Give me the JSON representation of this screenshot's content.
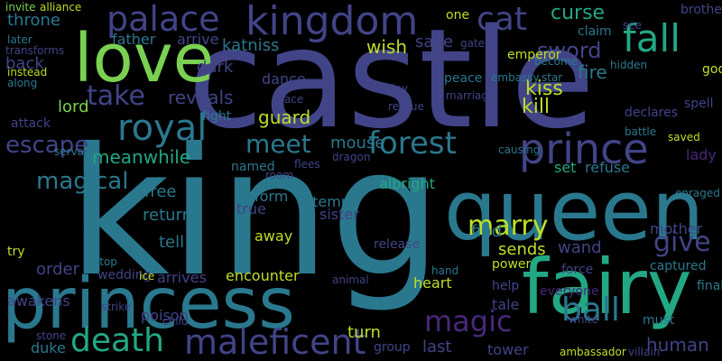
{
  "words": [
    {
      "text": "king",
      "color": "#2a788e"
    },
    {
      "text": "castle",
      "color": "#414487"
    },
    {
      "text": "queen",
      "color": "#2a788e"
    },
    {
      "text": "princess",
      "color": "#2a788e"
    },
    {
      "text": "fairy",
      "color": "#22a884"
    },
    {
      "text": "love",
      "color": "#7ad151"
    },
    {
      "text": "kingdom",
      "color": "#414487"
    },
    {
      "text": "prince",
      "color": "#414487"
    },
    {
      "text": "palace",
      "color": "#414487"
    },
    {
      "text": "maleficent",
      "color": "#414487"
    },
    {
      "text": "death",
      "color": "#22a884"
    },
    {
      "text": "fall",
      "color": "#22a884"
    },
    {
      "text": "royal",
      "color": "#2a788e"
    },
    {
      "text": "forest",
      "color": "#2a788e"
    },
    {
      "text": "cat",
      "color": "#414487"
    },
    {
      "text": "magic",
      "color": "#482878"
    },
    {
      "text": "ball",
      "color": "#2a788e"
    },
    {
      "text": "marry",
      "color": "#bddf26"
    },
    {
      "text": "take",
      "color": "#414487"
    },
    {
      "text": "meet",
      "color": "#2a788e"
    },
    {
      "text": "escape",
      "color": "#414487"
    },
    {
      "text": "magical",
      "color": "#2a788e"
    },
    {
      "text": "give",
      "color": "#414487"
    },
    {
      "text": "sword",
      "color": "#414487"
    },
    {
      "text": "curse",
      "color": "#22a884"
    },
    {
      "text": "kiss",
      "color": "#bddf26"
    },
    {
      "text": "kill",
      "color": "#bddf26"
    },
    {
      "text": "fire",
      "color": "#2a788e"
    },
    {
      "text": "reveals",
      "color": "#414487"
    },
    {
      "text": "meanwhile",
      "color": "#22a884"
    },
    {
      "text": "katniss",
      "color": "#2a788e"
    },
    {
      "text": "guard",
      "color": "#bddf26"
    },
    {
      "text": "mouse",
      "color": "#2a788e"
    },
    {
      "text": "throne",
      "color": "#2a788e"
    },
    {
      "text": "father",
      "color": "#2a788e"
    },
    {
      "text": "arrive",
      "color": "#414487"
    },
    {
      "text": "dark",
      "color": "#414487"
    },
    {
      "text": "wish",
      "color": "#bddf26"
    },
    {
      "text": "save",
      "color": "#414487"
    },
    {
      "text": "back",
      "color": "#414487"
    },
    {
      "text": "lord",
      "color": "#7ad151"
    },
    {
      "text": "dance",
      "color": "#414487"
    },
    {
      "text": "free",
      "color": "#2a788e"
    },
    {
      "text": "return",
      "color": "#2a788e"
    },
    {
      "text": "tell",
      "color": "#2a788e"
    },
    {
      "text": "order",
      "color": "#414487"
    },
    {
      "text": "human",
      "color": "#414487"
    },
    {
      "text": "turn",
      "color": "#bddf26"
    },
    {
      "text": "find",
      "color": "#2a788e"
    },
    {
      "text": "sends",
      "color": "#bddf26"
    },
    {
      "text": "wand",
      "color": "#414487"
    },
    {
      "text": "mother",
      "color": "#414487"
    },
    {
      "text": "lady",
      "color": "#482878"
    },
    {
      "text": "refuse",
      "color": "#2a788e"
    },
    {
      "text": "set",
      "color": "#22a884"
    },
    {
      "text": "sister",
      "color": "#414487"
    },
    {
      "text": "attempt",
      "color": "#2a788e"
    },
    {
      "text": "albright",
      "color": "#22a884"
    },
    {
      "text": "release",
      "color": "#414487"
    },
    {
      "text": "true",
      "color": "#414487"
    },
    {
      "text": "away",
      "color": "#bddf26"
    },
    {
      "text": "form",
      "color": "#2a788e"
    },
    {
      "text": "encounter",
      "color": "#bddf26"
    },
    {
      "text": "arrives",
      "color": "#414487"
    },
    {
      "text": "wedding",
      "color": "#414487"
    },
    {
      "text": "heart",
      "color": "#bddf26"
    },
    {
      "text": "tale",
      "color": "#414487"
    },
    {
      "text": "help",
      "color": "#414487"
    },
    {
      "text": "last",
      "color": "#414487"
    },
    {
      "text": "tower",
      "color": "#414487"
    },
    {
      "text": "duke",
      "color": "#2a788e"
    },
    {
      "text": "awakens",
      "color": "#414487"
    },
    {
      "text": "poison",
      "color": "#414487"
    },
    {
      "text": "group",
      "color": "#414487"
    },
    {
      "text": "finally",
      "color": "#2a788e"
    },
    {
      "text": "captured",
      "color": "#2a788e"
    },
    {
      "text": "force",
      "color": "#414487"
    },
    {
      "text": "power",
      "color": "#bddf26"
    },
    {
      "text": "everyone",
      "color": "#482878"
    },
    {
      "text": "must",
      "color": "#2a788e"
    },
    {
      "text": "declares",
      "color": "#414487"
    },
    {
      "text": "spell",
      "color": "#414487"
    },
    {
      "text": "godmother",
      "color": "#bddf26"
    },
    {
      "text": "brother",
      "color": "#414487"
    },
    {
      "text": "claim",
      "color": "#2a788e"
    },
    {
      "text": "emperor",
      "color": "#bddf26"
    },
    {
      "text": "peace",
      "color": "#2a788e"
    },
    {
      "text": "become",
      "color": "#2a788e"
    },
    {
      "text": "star",
      "color": "#2a788e"
    },
    {
      "text": "marriage",
      "color": "#414487"
    },
    {
      "text": "embassy",
      "color": "#2a788e"
    },
    {
      "text": "rescue",
      "color": "#414487"
    },
    {
      "text": "place",
      "color": "#414487"
    },
    {
      "text": "fight",
      "color": "#2a788e"
    },
    {
      "text": "attack",
      "color": "#414487"
    },
    {
      "text": "named",
      "color": "#2a788e"
    },
    {
      "text": "flees",
      "color": "#414487"
    },
    {
      "text": "dragon",
      "color": "#414487"
    },
    {
      "text": "room",
      "color": "#414487"
    },
    {
      "text": "enraged",
      "color": "#2a788e"
    },
    {
      "text": "saved",
      "color": "#bddf26"
    },
    {
      "text": "battle",
      "color": "#2a788e"
    },
    {
      "text": "stone",
      "color": "#414487"
    },
    {
      "text": "strike",
      "color": "#414487"
    },
    {
      "text": "ice",
      "color": "#bddf26"
    },
    {
      "text": "stop",
      "color": "#2a788e"
    },
    {
      "text": "hand",
      "color": "#2a788e"
    },
    {
      "text": "animal",
      "color": "#414487"
    },
    {
      "text": "causing",
      "color": "#2a788e"
    },
    {
      "text": "servant",
      "color": "#2a788e"
    },
    {
      "text": "try",
      "color": "#bddf26"
    },
    {
      "text": "later",
      "color": "#2a788e"
    },
    {
      "text": "instead",
      "color": "#bddf26"
    },
    {
      "text": "along",
      "color": "#2a788e"
    },
    {
      "text": "one",
      "color": "#bddf26"
    },
    {
      "text": "gate",
      "color": "#414487"
    },
    {
      "text": "see",
      "color": "#414487"
    },
    {
      "text": "hidden",
      "color": "#2a788e"
    },
    {
      "text": "day",
      "color": "#414487"
    },
    {
      "text": "ambassador",
      "color": "#bddf26"
    },
    {
      "text": "villain",
      "color": "#414487"
    },
    {
      "text": "white",
      "color": "#414487"
    },
    {
      "text": "child",
      "color": "#414487"
    },
    {
      "text": "invite",
      "color": "#7ad151"
    },
    {
      "text": "alliance",
      "color": "#bddf26"
    },
    {
      "text": "transforms",
      "color": "#414487"
    }
  ]
}
